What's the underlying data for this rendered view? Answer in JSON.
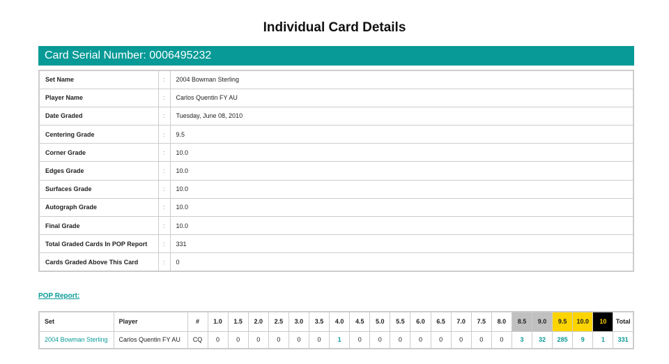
{
  "title": "Individual Card Details",
  "serial_label": "Card Serial Number: 0006495232",
  "details": [
    {
      "label": "Set Name",
      "value": "2004 Bowman Sterling"
    },
    {
      "label": "Player Name",
      "value": "Carlos Quentin FY AU"
    },
    {
      "label": "Date Graded",
      "value": "Tuesday, June 08, 2010"
    },
    {
      "label": "Centering Grade",
      "value": "9.5"
    },
    {
      "label": "Corner Grade",
      "value": "10.0"
    },
    {
      "label": "Edges Grade",
      "value": "10.0"
    },
    {
      "label": "Surfaces Grade",
      "value": "10.0"
    },
    {
      "label": "Autograph Grade",
      "value": "10.0"
    },
    {
      "label": "Final Grade",
      "value": "10.0"
    },
    {
      "label": "Total Graded Cards In POP Report",
      "value": "331"
    },
    {
      "label": "Cards Graded Above This Card",
      "value": "0"
    }
  ],
  "colon": ":",
  "pop_link": "POP Report:",
  "pop": {
    "headers": [
      "Set",
      "Player",
      "#",
      "1.0",
      "1.5",
      "2.0",
      "2.5",
      "3.0",
      "3.5",
      "4.0",
      "4.5",
      "5.0",
      "5.5",
      "6.0",
      "6.5",
      "7.0",
      "7.5",
      "8.0",
      "8.5",
      "9.0",
      "9.5",
      "10.0",
      "10",
      "Total"
    ],
    "row": [
      "2004 Bowman Sterling",
      "Carlos Quentin FY AU",
      "CQ",
      "0",
      "0",
      "0",
      "0",
      "0",
      "0",
      "1",
      "0",
      "0",
      "0",
      "0",
      "0",
      "0",
      "0",
      "0",
      "3",
      "32",
      "285",
      "9",
      "1",
      "331"
    ]
  },
  "colors": {
    "accent": "#079a96",
    "gray_header": "#c0c0c0",
    "gold_header": "#fcd400",
    "black_header": "#000000"
  }
}
